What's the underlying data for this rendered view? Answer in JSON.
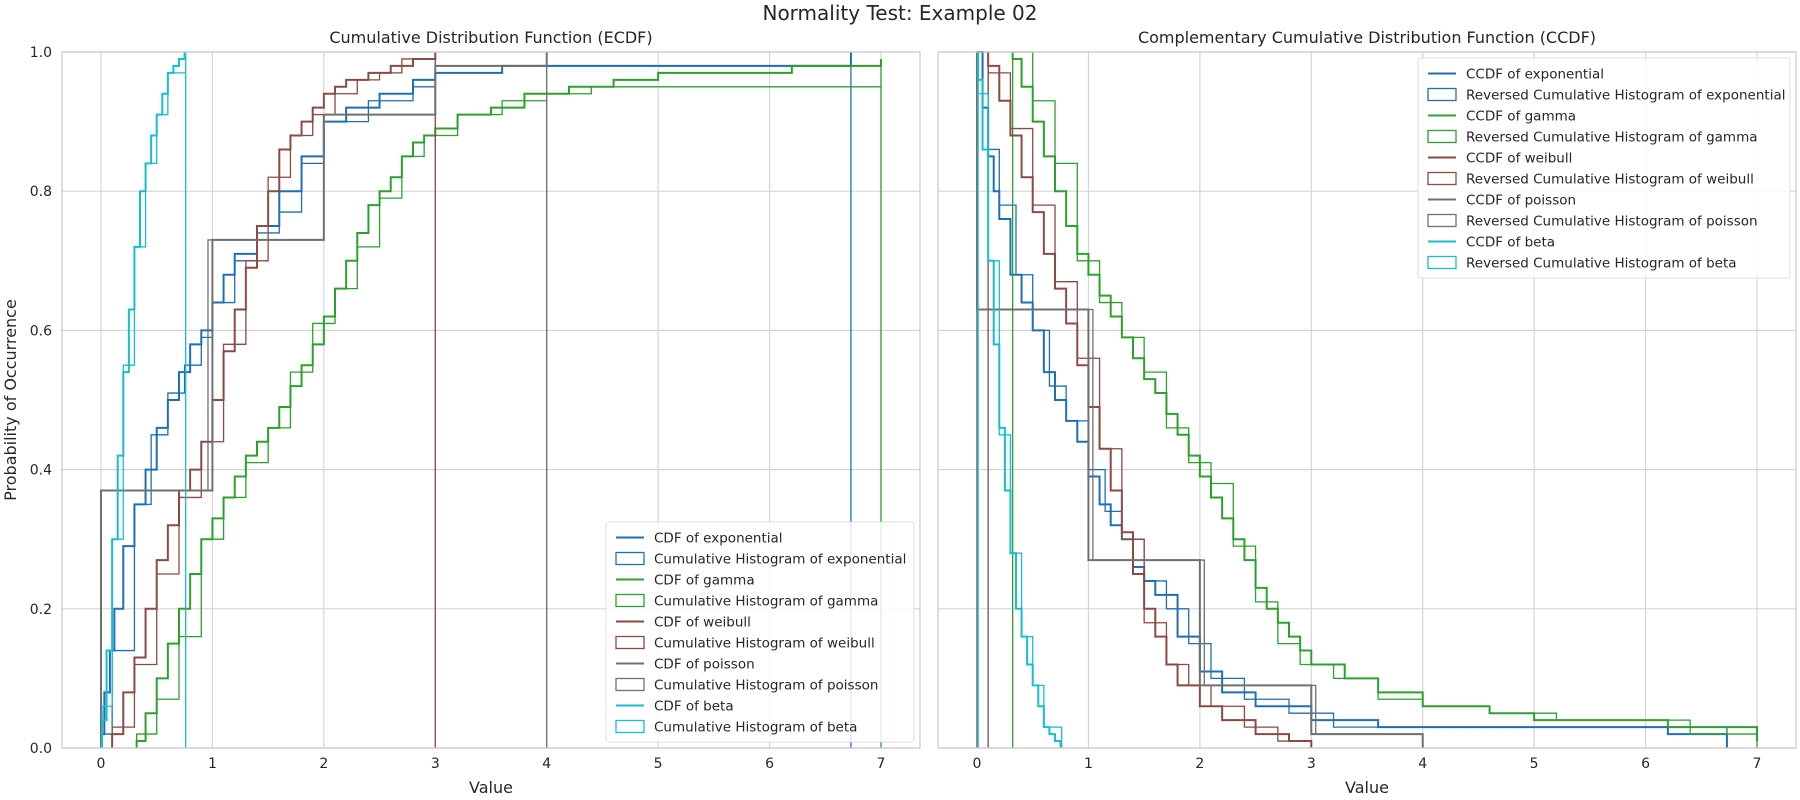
{
  "figure": {
    "suptitle": "Normality Test: Example 02"
  },
  "chart_data": [
    {
      "type": "line",
      "title": "Cumulative Distribution Function (ECDF)",
      "xlabel": "Value",
      "ylabel": "Probability of Occurrence",
      "xlim": [
        -0.35,
        7.35
      ],
      "ylim": [
        0,
        1
      ],
      "x_ticks": [
        0,
        1,
        2,
        3,
        4,
        5,
        6,
        7
      ],
      "y_ticks": [
        0.0,
        0.2,
        0.4,
        0.6,
        0.8,
        1.0
      ],
      "x_tick_labels": [
        "0",
        "1",
        "2",
        "3",
        "4",
        "5",
        "6",
        "7"
      ],
      "y_tick_labels": [
        "0.0",
        "0.2",
        "0.4",
        "0.6",
        "0.8",
        "1.0"
      ],
      "grid": true,
      "legend_position": "lower-right",
      "series": [
        {
          "name": "CDF of exponential",
          "kind": "line",
          "color": "#1f6fb5",
          "x": [
            0.0,
            0.03,
            0.08,
            0.12,
            0.2,
            0.3,
            0.4,
            0.5,
            0.6,
            0.7,
            0.8,
            0.9,
            1.0,
            1.1,
            1.2,
            1.4,
            1.6,
            1.8,
            2.0,
            2.2,
            2.5,
            2.8,
            3.0,
            3.6,
            6.73
          ],
          "y": [
            0.02,
            0.08,
            0.14,
            0.2,
            0.29,
            0.35,
            0.4,
            0.46,
            0.5,
            0.54,
            0.58,
            0.6,
            0.64,
            0.68,
            0.71,
            0.75,
            0.8,
            0.85,
            0.9,
            0.92,
            0.94,
            0.96,
            0.97,
            0.98,
            1.0
          ]
        },
        {
          "name": "Cumulative Histogram of exponential",
          "kind": "hist",
          "color": "#1f6fb5",
          "x": [
            0.0,
            0.1,
            0.3,
            0.45,
            0.6,
            0.75,
            0.9,
            1.0,
            1.2,
            1.4,
            1.6,
            1.8,
            2.0,
            2.4,
            2.8,
            3.0,
            6.73
          ],
          "y": [
            0.02,
            0.14,
            0.35,
            0.45,
            0.51,
            0.55,
            0.59,
            0.64,
            0.7,
            0.74,
            0.77,
            0.84,
            0.9,
            0.93,
            0.95,
            0.98,
            1.0
          ]
        },
        {
          "name": "CDF of gamma",
          "kind": "line",
          "color": "#2ca02c",
          "x": [
            0.32,
            0.4,
            0.5,
            0.6,
            0.7,
            0.8,
            0.9,
            1.0,
            1.1,
            1.2,
            1.3,
            1.4,
            1.5,
            1.6,
            1.7,
            1.8,
            1.9,
            2.0,
            2.1,
            2.2,
            2.3,
            2.4,
            2.5,
            2.6,
            2.7,
            2.8,
            2.9,
            3.0,
            3.2,
            3.5,
            3.8,
            4.2,
            4.6,
            5.0,
            6.2,
            7.0
          ],
          "y": [
            0.01,
            0.05,
            0.1,
            0.15,
            0.2,
            0.25,
            0.3,
            0.33,
            0.36,
            0.39,
            0.42,
            0.44,
            0.46,
            0.49,
            0.52,
            0.55,
            0.58,
            0.62,
            0.66,
            0.7,
            0.74,
            0.78,
            0.8,
            0.82,
            0.85,
            0.87,
            0.88,
            0.89,
            0.91,
            0.92,
            0.94,
            0.95,
            0.96,
            0.97,
            0.98,
            0.99
          ]
        },
        {
          "name": "Cumulative Histogram of gamma",
          "kind": "hist",
          "color": "#2ca02c",
          "x": [
            0.32,
            0.5,
            0.7,
            0.9,
            1.1,
            1.3,
            1.5,
            1.7,
            1.9,
            2.1,
            2.3,
            2.5,
            2.7,
            2.9,
            3.2,
            3.6,
            4.0,
            4.4,
            7.0
          ],
          "y": [
            0.02,
            0.07,
            0.16,
            0.3,
            0.36,
            0.41,
            0.46,
            0.54,
            0.61,
            0.66,
            0.72,
            0.79,
            0.85,
            0.88,
            0.91,
            0.93,
            0.94,
            0.95,
            0.99
          ]
        },
        {
          "name": "CDF of weibull",
          "kind": "line",
          "color": "#8b4a42",
          "x": [
            0.1,
            0.2,
            0.3,
            0.4,
            0.5,
            0.6,
            0.7,
            0.8,
            0.9,
            1.0,
            1.1,
            1.2,
            1.3,
            1.4,
            1.5,
            1.6,
            1.7,
            1.8,
            1.9,
            2.0,
            2.1,
            2.2,
            2.4,
            2.6,
            2.8,
            3.0
          ],
          "y": [
            0.02,
            0.08,
            0.13,
            0.2,
            0.27,
            0.32,
            0.37,
            0.4,
            0.44,
            0.5,
            0.57,
            0.63,
            0.69,
            0.75,
            0.8,
            0.86,
            0.88,
            0.9,
            0.92,
            0.94,
            0.95,
            0.96,
            0.97,
            0.98,
            0.99,
            1.0
          ]
        },
        {
          "name": "Cumulative Histogram of weibull",
          "kind": "hist",
          "color": "#8b4a42",
          "x": [
            0.1,
            0.3,
            0.5,
            0.7,
            0.9,
            1.1,
            1.3,
            1.5,
            1.7,
            1.9,
            2.1,
            2.3,
            2.5,
            2.7,
            3.0
          ],
          "y": [
            0.03,
            0.12,
            0.25,
            0.36,
            0.44,
            0.58,
            0.7,
            0.82,
            0.88,
            0.91,
            0.94,
            0.96,
            0.97,
            0.99,
            1.0
          ]
        },
        {
          "name": "CDF of poisson",
          "kind": "line",
          "color": "#707070",
          "x": [
            0.0,
            1.0,
            2.0,
            3.0,
            4.0
          ],
          "y": [
            0.37,
            0.73,
            0.91,
            0.98,
            1.0
          ]
        },
        {
          "name": "Cumulative Histogram of poisson",
          "kind": "hist",
          "color": "#707070",
          "x": [
            0.0,
            0.96,
            2.0,
            3.0,
            4.0
          ],
          "y": [
            0.37,
            0.73,
            0.91,
            0.98,
            1.0
          ]
        },
        {
          "name": "CDF of beta",
          "kind": "line",
          "color": "#17becf",
          "x": [
            0.01,
            0.05,
            0.1,
            0.15,
            0.2,
            0.25,
            0.3,
            0.35,
            0.4,
            0.45,
            0.5,
            0.55,
            0.6,
            0.65,
            0.7,
            0.75
          ],
          "y": [
            0.04,
            0.14,
            0.3,
            0.42,
            0.54,
            0.63,
            0.72,
            0.8,
            0.84,
            0.88,
            0.91,
            0.94,
            0.97,
            0.98,
            0.99,
            1.0
          ]
        },
        {
          "name": "Cumulative Histogram of beta",
          "kind": "hist",
          "color": "#17becf",
          "x": [
            0.01,
            0.1,
            0.2,
            0.3,
            0.4,
            0.5,
            0.6,
            0.76
          ],
          "y": [
            0.06,
            0.3,
            0.55,
            0.72,
            0.84,
            0.91,
            0.97,
            1.0
          ]
        }
      ]
    },
    {
      "type": "line",
      "title": "Complementary Cumulative Distribution Function (CCDF)",
      "xlabel": "Value",
      "ylabel": "",
      "xlim": [
        -0.35,
        7.35
      ],
      "ylim": [
        0,
        1
      ],
      "x_ticks": [
        0,
        1,
        2,
        3,
        4,
        5,
        6,
        7
      ],
      "y_ticks": [
        0.0,
        0.2,
        0.4,
        0.6,
        0.8,
        1.0
      ],
      "x_tick_labels": [
        "0",
        "1",
        "2",
        "3",
        "4",
        "5",
        "6",
        "7"
      ],
      "grid": true,
      "legend_position": "upper-right",
      "series": [
        {
          "name": "CCDF of exponential",
          "kind": "line",
          "color": "#1f6fb5",
          "x": [
            0.0,
            0.05,
            0.1,
            0.15,
            0.2,
            0.3,
            0.4,
            0.5,
            0.6,
            0.7,
            0.8,
            0.9,
            1.0,
            1.1,
            1.2,
            1.3,
            1.4,
            1.5,
            1.6,
            1.8,
            2.0,
            2.2,
            2.5,
            3.0,
            3.6,
            6.2,
            6.73
          ],
          "y": [
            1.0,
            0.92,
            0.85,
            0.8,
            0.76,
            0.68,
            0.64,
            0.6,
            0.54,
            0.5,
            0.47,
            0.44,
            0.39,
            0.35,
            0.32,
            0.3,
            0.26,
            0.24,
            0.22,
            0.16,
            0.11,
            0.08,
            0.06,
            0.04,
            0.03,
            0.02,
            0.0
          ]
        },
        {
          "name": "Reversed Cumulative Histogram of exponential",
          "kind": "hist",
          "color": "#1f6fb5",
          "x": [
            0.0,
            0.1,
            0.2,
            0.35,
            0.5,
            0.65,
            0.8,
            1.0,
            1.15,
            1.3,
            1.5,
            1.7,
            1.9,
            2.1,
            2.4,
            2.8,
            3.2,
            6.73
          ],
          "y": [
            1.0,
            0.86,
            0.78,
            0.68,
            0.6,
            0.52,
            0.47,
            0.4,
            0.34,
            0.3,
            0.24,
            0.2,
            0.15,
            0.1,
            0.07,
            0.05,
            0.03,
            0.0
          ]
        },
        {
          "name": "CCDF of gamma",
          "kind": "line",
          "color": "#2ca02c",
          "x": [
            0.32,
            0.4,
            0.5,
            0.6,
            0.7,
            0.8,
            0.9,
            1.0,
            1.1,
            1.2,
            1.3,
            1.4,
            1.5,
            1.6,
            1.7,
            1.8,
            1.9,
            2.0,
            2.1,
            2.2,
            2.3,
            2.4,
            2.5,
            2.6,
            2.7,
            2.8,
            2.9,
            3.0,
            3.3,
            3.6,
            4.0,
            4.6,
            5.0,
            6.2,
            7.0
          ],
          "y": [
            0.99,
            0.95,
            0.9,
            0.85,
            0.8,
            0.75,
            0.71,
            0.68,
            0.65,
            0.62,
            0.59,
            0.56,
            0.53,
            0.51,
            0.48,
            0.45,
            0.42,
            0.39,
            0.36,
            0.33,
            0.3,
            0.27,
            0.23,
            0.2,
            0.18,
            0.16,
            0.14,
            0.12,
            0.1,
            0.08,
            0.06,
            0.05,
            0.04,
            0.03,
            0.01
          ]
        },
        {
          "name": "Reversed Cumulative Histogram of gamma",
          "kind": "hist",
          "color": "#2ca02c",
          "x": [
            0.32,
            0.5,
            0.7,
            0.9,
            1.1,
            1.3,
            1.5,
            1.7,
            1.9,
            2.1,
            2.3,
            2.5,
            2.7,
            2.9,
            3.2,
            3.6,
            4.0,
            4.6,
            5.2,
            6.4,
            7.0
          ],
          "y": [
            1.0,
            0.93,
            0.84,
            0.7,
            0.64,
            0.59,
            0.54,
            0.46,
            0.41,
            0.38,
            0.29,
            0.21,
            0.15,
            0.12,
            0.1,
            0.07,
            0.06,
            0.05,
            0.04,
            0.02,
            0.01
          ]
        },
        {
          "name": "CCDF of weibull",
          "kind": "line",
          "color": "#8b4a42",
          "x": [
            0.1,
            0.2,
            0.3,
            0.4,
            0.5,
            0.6,
            0.7,
            0.8,
            0.9,
            1.0,
            1.1,
            1.2,
            1.3,
            1.4,
            1.5,
            1.6,
            1.7,
            1.8,
            2.0,
            2.2,
            2.5,
            2.8,
            3.0
          ],
          "y": [
            0.98,
            0.93,
            0.88,
            0.82,
            0.77,
            0.71,
            0.66,
            0.61,
            0.55,
            0.49,
            0.43,
            0.37,
            0.31,
            0.25,
            0.2,
            0.16,
            0.12,
            0.09,
            0.06,
            0.04,
            0.02,
            0.01,
            0.0
          ]
        },
        {
          "name": "Reversed Cumulative Histogram of weibull",
          "kind": "hist",
          "color": "#8b4a42",
          "x": [
            0.1,
            0.3,
            0.5,
            0.7,
            0.9,
            1.1,
            1.3,
            1.5,
            1.7,
            1.9,
            2.1,
            2.4,
            2.7,
            3.0
          ],
          "y": [
            0.97,
            0.89,
            0.78,
            0.67,
            0.56,
            0.43,
            0.3,
            0.18,
            0.12,
            0.09,
            0.06,
            0.03,
            0.01,
            0.0
          ]
        },
        {
          "name": "CCDF of poisson",
          "kind": "line",
          "color": "#707070",
          "x": [
            0.0,
            1.0,
            2.0,
            3.0,
            4.0
          ],
          "y": [
            0.63,
            0.27,
            0.09,
            0.02,
            0.0
          ]
        },
        {
          "name": "Reversed Cumulative Histogram of poisson",
          "kind": "hist",
          "color": "#707070",
          "x": [
            0.0,
            1.04,
            2.04,
            3.04,
            4.0
          ],
          "y": [
            0.63,
            0.27,
            0.09,
            0.02,
            0.0
          ]
        },
        {
          "name": "CCDF of beta",
          "kind": "line",
          "color": "#17becf",
          "x": [
            0.01,
            0.05,
            0.1,
            0.15,
            0.2,
            0.25,
            0.3,
            0.35,
            0.4,
            0.45,
            0.5,
            0.55,
            0.6,
            0.65,
            0.7,
            0.75
          ],
          "y": [
            0.96,
            0.86,
            0.7,
            0.58,
            0.46,
            0.37,
            0.28,
            0.2,
            0.16,
            0.12,
            0.09,
            0.06,
            0.03,
            0.02,
            0.01,
            0.0
          ]
        },
        {
          "name": "Reversed Cumulative Histogram of beta",
          "kind": "hist",
          "color": "#17becf",
          "x": [
            0.01,
            0.1,
            0.2,
            0.3,
            0.4,
            0.5,
            0.6,
            0.76
          ],
          "y": [
            0.94,
            0.7,
            0.45,
            0.28,
            0.16,
            0.09,
            0.03,
            0.0
          ]
        }
      ]
    }
  ]
}
